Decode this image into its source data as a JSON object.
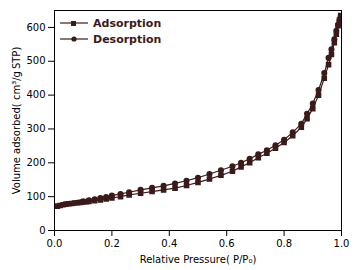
{
  "chart_data": {
    "type": "line",
    "title": "",
    "xlabel": "Relative Pressure( P/P₀)",
    "ylabel": "Volume adsorbed( cm³/g STP)",
    "xlim": [
      0.0,
      1.0
    ],
    "ylim": [
      0,
      650
    ],
    "xticks": [
      {
        "value": 0.0,
        "label": "0.0"
      },
      0.2,
      0.4,
      0.6,
      0.8,
      {
        "value": 1.0,
        "label": "1.0"
      }
    ],
    "yticks": [
      0,
      100,
      200,
      300,
      400,
      500,
      600
    ],
    "grid": false,
    "legend": "upper left",
    "series": [
      {
        "name": "Adsorption",
        "color": "#3b1a1a",
        "marker": "square",
        "x": [
          0.01,
          0.02,
          0.03,
          0.04,
          0.05,
          0.06,
          0.07,
          0.08,
          0.09,
          0.1,
          0.11,
          0.12,
          0.14,
          0.16,
          0.18,
          0.2,
          0.23,
          0.26,
          0.3,
          0.34,
          0.38,
          0.42,
          0.46,
          0.5,
          0.54,
          0.58,
          0.62,
          0.65,
          0.68,
          0.71,
          0.74,
          0.77,
          0.8,
          0.83,
          0.86,
          0.88,
          0.9,
          0.92,
          0.94,
          0.955,
          0.965,
          0.975,
          0.982,
          0.988,
          0.993,
          0.997
        ],
        "values": [
          72,
          74,
          76,
          78,
          79,
          80,
          81,
          82,
          83,
          84,
          85,
          86,
          88,
          90,
          93,
          96,
          100,
          105,
          110,
          115,
          120,
          125,
          133,
          142,
          152,
          163,
          175,
          188,
          200,
          215,
          228,
          243,
          260,
          280,
          305,
          330,
          360,
          400,
          450,
          490,
          520,
          555,
          580,
          605,
          622,
          635
        ]
      },
      {
        "name": "Desorption",
        "color": "#3b1a1a",
        "marker": "circle",
        "x": [
          0.997,
          0.993,
          0.988,
          0.982,
          0.975,
          0.965,
          0.955,
          0.94,
          0.92,
          0.9,
          0.88,
          0.86,
          0.83,
          0.8,
          0.77,
          0.74,
          0.71,
          0.68,
          0.65,
          0.62,
          0.58,
          0.54,
          0.5,
          0.46,
          0.42,
          0.38,
          0.34,
          0.3,
          0.26,
          0.23,
          0.2,
          0.18,
          0.16,
          0.14,
          0.12,
          0.1
        ],
        "values": [
          630,
          620,
          608,
          590,
          565,
          535,
          510,
          465,
          415,
          375,
          345,
          315,
          290,
          268,
          252,
          237,
          225,
          212,
          200,
          190,
          178,
          167,
          156,
          147,
          139,
          132,
          126,
          120,
          113,
          108,
          103,
          99,
          96,
          92,
          89,
          86
        ]
      }
    ]
  }
}
